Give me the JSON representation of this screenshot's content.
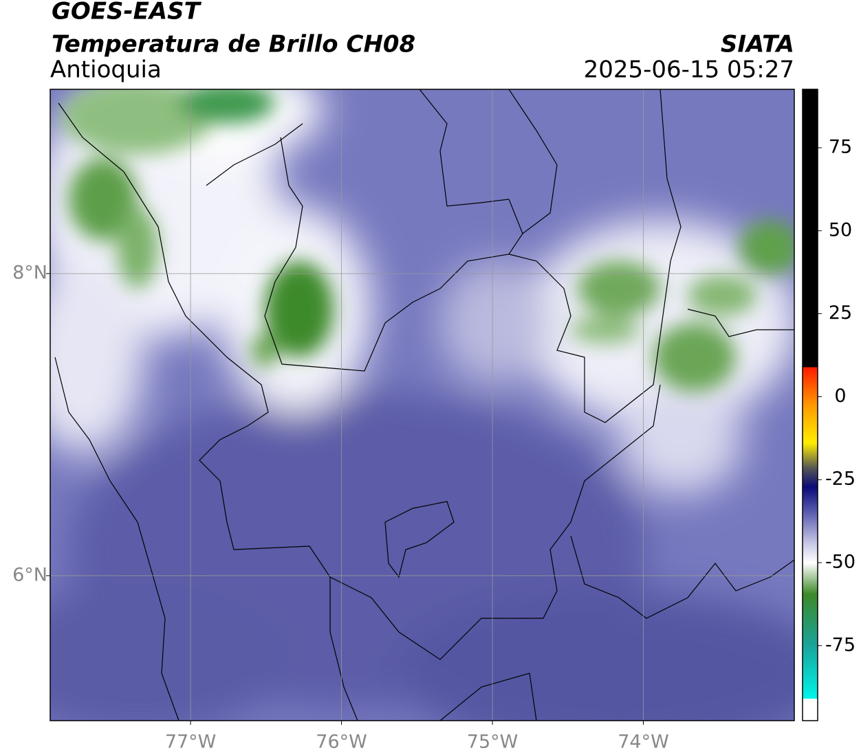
{
  "header": {
    "title": "GOES-EAST",
    "subtitle": "Temperatura de Brillo CH08",
    "region": "Antioquia",
    "source": "SIATA",
    "timestamp": "2025-06-15 05:27"
  },
  "map": {
    "xlim": [
      -77.93,
      -73.0
    ],
    "ylim": [
      5.04,
      9.22
    ],
    "xticks": [
      {
        "value": -77,
        "label": "77°W"
      },
      {
        "value": -76,
        "label": "76°W"
      },
      {
        "value": -75,
        "label": "75°W"
      },
      {
        "value": -74,
        "label": "74°W"
      }
    ],
    "yticks": [
      {
        "value": 8,
        "label": "8°N"
      },
      {
        "value": 6,
        "label": "6°N"
      }
    ],
    "grid": true
  },
  "colorbar": {
    "clim": [
      -97.6,
      92.6
    ],
    "ticks": [
      75,
      50,
      25,
      0,
      -25,
      -50,
      -75
    ]
  }
}
